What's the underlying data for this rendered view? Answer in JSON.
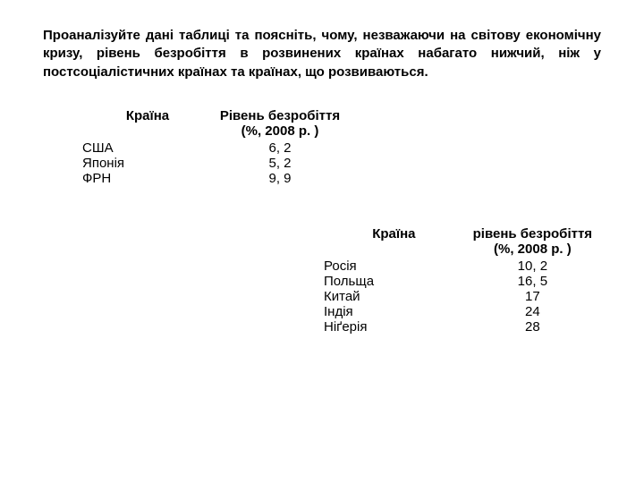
{
  "heading": "Проаналізуйте дані таблиці та поясніть, чому, незважаючи на світову економічну кризу, рівень безробіття в розвинених країнах набагато нижчий, ніж у постсоціалістичних країнах та країнах, що розвиваються.",
  "table1": {
    "headers": {
      "country": "Країна",
      "value_line1": "Рівень безробіття",
      "value_line2": "(%, 2008 р. )"
    },
    "rows": [
      {
        "country": "США",
        "value": "6, 2"
      },
      {
        "country": "Японія",
        "value": "5, 2"
      },
      {
        "country": "ФРН",
        "value": "9, 9"
      }
    ]
  },
  "table2": {
    "headers": {
      "country": "Країна",
      "value_line1": "рівень безробіття",
      "value_line2": "(%, 2008 р. )"
    },
    "rows": [
      {
        "country": "Росія",
        "value": "10, 2"
      },
      {
        "country": "Польща",
        "value": "16, 5"
      },
      {
        "country": "Китай",
        "value": "17"
      },
      {
        "country": "Індія",
        "value": "24"
      },
      {
        "country": "Ніґерія",
        "value": "28"
      }
    ]
  },
  "styling": {
    "background_color": "#ffffff",
    "text_color": "#000000",
    "font_family": "Arial, sans-serif",
    "heading_fontsize": 15,
    "cell_fontsize": 15,
    "heading_weight": "bold",
    "header_weight": "bold"
  }
}
